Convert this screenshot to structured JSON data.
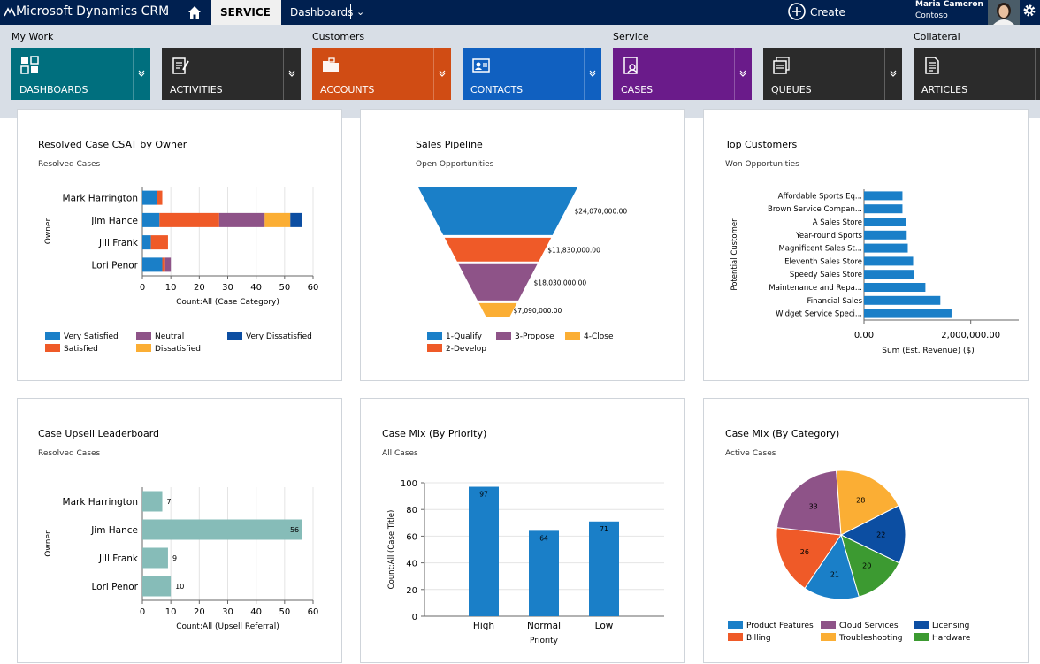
{
  "topbar": {
    "app_name": "Microsoft Dynamics CRM",
    "area": "SERVICE",
    "nav_label": "Dashboards",
    "create_label": "Create",
    "user_name": "Maria Cameron",
    "org_name": "Contoso"
  },
  "groups": {
    "my_work": "My Work",
    "customers": "Customers",
    "service": "Service",
    "collateral": "Collateral"
  },
  "tiles": [
    {
      "label": "DASHBOARDS",
      "color": "#006f7e"
    },
    {
      "label": "ACTIVITIES",
      "color": "#2b2b2b"
    },
    {
      "label": "ACCOUNTS",
      "color": "#d04c14"
    },
    {
      "label": "CONTACTS",
      "color": "#1060c0"
    },
    {
      "label": "CASES",
      "color": "#6a1b8a"
    },
    {
      "label": "QUEUES",
      "color": "#2b2b2b"
    },
    {
      "label": "ARTICLES",
      "color": "#2b2b2b"
    }
  ],
  "chart_data": [
    {
      "type": "bar",
      "orientation": "horizontal",
      "stacked": true,
      "title": "Resolved Case CSAT by Owner",
      "subtitle": "Resolved Cases",
      "xlabel": "Count:All (Case Category)",
      "ylabel": "Owner",
      "xlim": [
        0,
        60
      ],
      "xticks": [
        0,
        10,
        20,
        30,
        40,
        50,
        60
      ],
      "categories": [
        "Mark Harrington",
        "Jim Hance",
        "Jill Frank",
        "Lori Penor"
      ],
      "series": [
        {
          "name": "Very Satisfied",
          "color": "#1a7fc8",
          "values": [
            5,
            6,
            3,
            7
          ]
        },
        {
          "name": "Satisfied",
          "color": "#ef5a28",
          "values": [
            2,
            21,
            6,
            1
          ]
        },
        {
          "name": "Neutral",
          "color": "#8e5388",
          "values": [
            0,
            16,
            0,
            2
          ]
        },
        {
          "name": "Dissatisfied",
          "color": "#fbae34",
          "values": [
            0,
            9,
            0,
            0
          ]
        },
        {
          "name": "Very Dissatisfied",
          "color": "#0c4ea2",
          "values": [
            0,
            4,
            0,
            0
          ]
        }
      ]
    },
    {
      "type": "funnel",
      "title": "Sales Pipeline",
      "subtitle": "Open Opportunities",
      "stages": [
        {
          "name": "1-Qualify",
          "value": 24070000,
          "label": "$24,070,000.00",
          "color": "#1a7fc8"
        },
        {
          "name": "2-Develop",
          "value": 11830000,
          "label": "$11,830,000.00",
          "color": "#ef5a28"
        },
        {
          "name": "3-Propose",
          "value": 18030000,
          "label": "$18,030,000.00",
          "color": "#8e5388"
        },
        {
          "name": "4-Close",
          "value": 7090000,
          "label": "$7,090,000.00",
          "color": "#fbae34"
        }
      ]
    },
    {
      "type": "bar",
      "orientation": "horizontal",
      "title": "Top Customers",
      "subtitle": "Won Opportunities",
      "xlabel": "Sum (Est. Revenue) ($)",
      "ylabel": "Potential Customer",
      "xlim": [
        0,
        2900000
      ],
      "xticks": [
        0,
        2000000
      ],
      "xtick_labels": [
        "0.00",
        "2,000,000.00"
      ],
      "color": "#1a7fc8",
      "categories": [
        "Affordable Sports Eq...",
        "Brown Service Compan...",
        "A Sales Store",
        "Year-round Sports",
        "Magnificent Sales St...",
        "Eleventh Sales Store",
        "Speedy Sales Store",
        "Maintenance and Repa...",
        "Financial Sales",
        "Widget Service Speci..."
      ],
      "values": [
        720000,
        720000,
        780000,
        800000,
        820000,
        920000,
        930000,
        1150000,
        1430000,
        1640000
      ]
    },
    {
      "type": "bar",
      "orientation": "horizontal",
      "title": "Case Upsell Leaderboard",
      "subtitle": "Resolved Cases",
      "xlabel": "Count:All (Upsell Referral)",
      "ylabel": "Owner",
      "xlim": [
        0,
        60
      ],
      "xticks": [
        0,
        10,
        20,
        30,
        40,
        50,
        60
      ],
      "color": "#86bcb8",
      "categories": [
        "Mark Harrington",
        "Jim Hance",
        "Jill Frank",
        "Lori Penor"
      ],
      "values": [
        7,
        56,
        9,
        10
      ]
    },
    {
      "type": "bar",
      "orientation": "vertical",
      "title": "Case Mix (By Priority)",
      "subtitle": "All Cases",
      "xlabel": "Priority",
      "ylabel": "Count:All (Case Title)",
      "ylim": [
        0,
        100
      ],
      "yticks": [
        0,
        20,
        40,
        60,
        80,
        100
      ],
      "color": "#1a7fc8",
      "categories": [
        "High",
        "Normal",
        "Low"
      ],
      "values": [
        97,
        64,
        71
      ]
    },
    {
      "type": "pie",
      "title": "Case Mix (By Category)",
      "subtitle": "Active Cases",
      "slices": [
        {
          "name": "Licensing",
          "value": 22,
          "color": "#0c4ea2"
        },
        {
          "name": "Hardware",
          "value": 20,
          "color": "#3c9a31"
        },
        {
          "name": "Product Features",
          "value": 21,
          "color": "#1a7fc8"
        },
        {
          "name": "Billing",
          "value": 26,
          "color": "#ef5a28"
        },
        {
          "name": "Cloud Services",
          "value": 33,
          "color": "#8e5388"
        },
        {
          "name": "Troubleshooting",
          "value": 28,
          "color": "#fbae34"
        }
      ],
      "legend_order": [
        "Product Features",
        "Cloud Services",
        "Licensing",
        "Billing",
        "Troubleshooting",
        "Hardware"
      ]
    }
  ]
}
